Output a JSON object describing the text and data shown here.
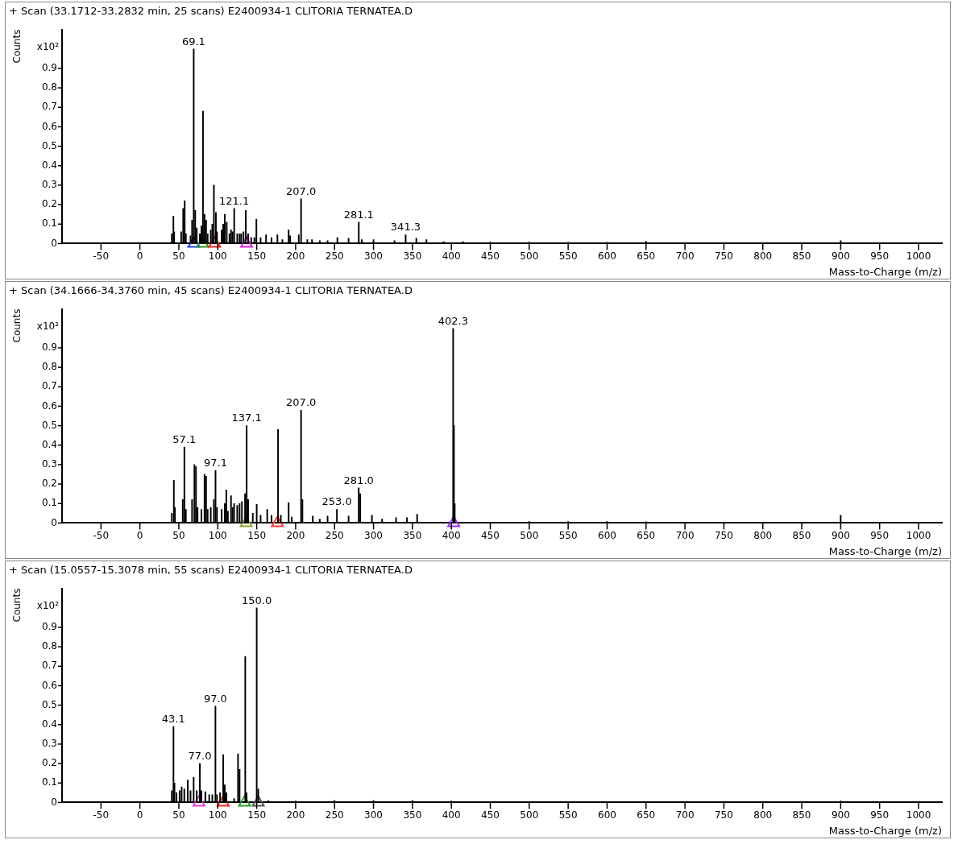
{
  "chart_data": [
    {
      "type": "bar",
      "title": "+ Scan (33.1712-33.2832 min, 25 scans) E2400934-1 CLITORIA TERNATEA.D",
      "xlabel": "Mass-to-Charge (m/z)",
      "ylabel": "Counts",
      "xlim": [
        -100,
        1030
      ],
      "xticks": [
        -50,
        0,
        50,
        100,
        150,
        200,
        250,
        300,
        350,
        400,
        450,
        500,
        550,
        600,
        650,
        700,
        750,
        800,
        850,
        900,
        950,
        1000
      ],
      "ylim": [
        0,
        1.1
      ],
      "yticks": [
        0,
        0.1,
        0.2,
        0.3,
        0.4,
        0.5,
        0.6,
        0.7,
        0.8,
        0.9
      ],
      "annotations": [
        "x10²",
        {
          "text": "69.1",
          "x": 69.1,
          "y": 1.0
        },
        {
          "text": "121.1",
          "x": 121.1,
          "y": 0.18
        },
        {
          "text": "207.0",
          "x": 207,
          "y": 0.23
        },
        {
          "text": "281.1",
          "x": 281.1,
          "y": 0.11
        },
        {
          "text": "341.3",
          "x": 341.3,
          "y": 0.045
        }
      ],
      "series": [
        {
          "color": "#000000",
          "x": [
            41,
            43,
            44,
            53,
            55.6,
            57.5,
            59,
            65,
            67,
            69.1,
            71,
            73,
            77,
            79,
            81,
            83,
            85,
            87,
            91,
            93,
            95,
            97.6,
            99,
            105,
            107,
            109,
            111.5,
            115,
            117,
            119,
            121.1,
            125,
            128,
            130,
            133,
            136,
            139,
            143,
            147,
            149.6,
            155,
            162,
            169,
            176.6,
            183,
            191,
            193,
            204,
            207,
            215,
            221,
            231,
            241,
            253.6,
            268,
            281.1,
            285,
            300,
            327,
            341.3,
            355,
            368,
            390,
            415,
            450,
            500,
            550,
            600,
            650,
            900
          ],
          "values": [
            0.05,
            0.14,
            0.06,
            0.06,
            0.18,
            0.22,
            0.05,
            0.04,
            0.12,
            1.0,
            0.17,
            0.08,
            0.05,
            0.09,
            0.68,
            0.15,
            0.12,
            0.05,
            0.07,
            0.1,
            0.3,
            0.16,
            0.06,
            0.07,
            0.1,
            0.15,
            0.11,
            0.05,
            0.07,
            0.06,
            0.18,
            0.05,
            0.05,
            0.05,
            0.06,
            0.17,
            0.05,
            0.03,
            0.03,
            0.125,
            0.03,
            0.045,
            0.03,
            0.045,
            0.02,
            0.07,
            0.04,
            0.045,
            0.23,
            0.02,
            0.02,
            0.015,
            0.015,
            0.03,
            0.027,
            0.11,
            0.02,
            0.02,
            0.015,
            0.045,
            0.027,
            0.02,
            0.01,
            0.01,
            0.008,
            0.008,
            0.006,
            0.006,
            0.012,
            0.015
          ]
        },
        {
          "type": "scatter",
          "marker": "triangle",
          "x": [
            69.4,
            80.6,
            96,
            137
          ],
          "values": [
            0,
            0,
            0,
            0
          ],
          "colors": [
            "#1f3fff",
            "#2a9a2a",
            "#ff2a1a",
            "#e020e0"
          ]
        }
      ]
    },
    {
      "type": "bar",
      "title": "+ Scan (34.1666-34.3760 min, 45 scans) E2400934-1 CLITORIA TERNATEA.D",
      "xlabel": "Mass-to-Charge (m/z)",
      "ylabel": "Counts",
      "xlim": [
        -100,
        1030
      ],
      "xticks": [
        -50,
        0,
        50,
        100,
        150,
        200,
        250,
        300,
        350,
        400,
        450,
        500,
        550,
        600,
        650,
        700,
        750,
        800,
        850,
        900,
        950,
        1000
      ],
      "ylim": [
        0,
        1.1
      ],
      "yticks": [
        0,
        0.1,
        0.2,
        0.3,
        0.4,
        0.5,
        0.6,
        0.7,
        0.8,
        0.9
      ],
      "annotations": [
        "x10²",
        {
          "text": "57.1",
          "x": 57.1,
          "y": 0.39
        },
        {
          "text": "97.1",
          "x": 97.1,
          "y": 0.27
        },
        {
          "text": "137.1",
          "x": 137.1,
          "y": 0.5
        },
        {
          "text": "207.0",
          "x": 207,
          "y": 0.58
        },
        {
          "text": "253.0",
          "x": 253,
          "y": 0.07
        },
        {
          "text": "281.0",
          "x": 281,
          "y": 0.18
        },
        {
          "text": "402.3",
          "x": 402.3,
          "y": 1.0
        }
      ],
      "series": [
        {
          "color": "#000000",
          "x": [
            41,
            43.6,
            45,
            55,
            57.1,
            59,
            67,
            70,
            72,
            74,
            79,
            83,
            85,
            87,
            91,
            95,
            97.1,
            99,
            105,
            109,
            111,
            113,
            117,
            119,
            121,
            125,
            128,
            131,
            135,
            137.1,
            139,
            145,
            150,
            155,
            163.5,
            169,
            177.4,
            181,
            191,
            195,
            207,
            208.7,
            222,
            231,
            241,
            253,
            268,
            281,
            283,
            298,
            311,
            329,
            343,
            356,
            402.3,
            403.3,
            404.3,
            500,
            550,
            600,
            650,
            900
          ],
          "values": [
            0.05,
            0.22,
            0.08,
            0.12,
            0.39,
            0.07,
            0.12,
            0.3,
            0.29,
            0.08,
            0.07,
            0.25,
            0.24,
            0.07,
            0.08,
            0.12,
            0.27,
            0.08,
            0.07,
            0.1,
            0.17,
            0.06,
            0.14,
            0.08,
            0.1,
            0.09,
            0.1,
            0.11,
            0.15,
            0.5,
            0.12,
            0.05,
            0.095,
            0.04,
            0.07,
            0.04,
            0.48,
            0.04,
            0.105,
            0.03,
            0.58,
            0.12,
            0.035,
            0.02,
            0.035,
            0.07,
            0.035,
            0.18,
            0.15,
            0.04,
            0.02,
            0.027,
            0.027,
            0.045,
            1.0,
            0.5,
            0.1,
            0.008,
            0.008,
            0.008,
            0.006,
            0.04
          ]
        },
        {
          "type": "scatter",
          "marker": "triangle",
          "x": [
            136.5,
            176.6,
            403
          ],
          "values": [
            0,
            0,
            0
          ],
          "colors": [
            "#9aa33a",
            "#ff3a3a",
            "#9b30ff"
          ]
        }
      ]
    },
    {
      "type": "bar",
      "title": "+ Scan (15.0557-15.3078 min, 55 scans) E2400934-1 CLITORIA TERNATEA.D",
      "xlabel": "Mass-to-Charge (m/z)",
      "ylabel": "Counts",
      "xlim": [
        -100,
        1030
      ],
      "xticks": [
        -50,
        0,
        50,
        100,
        150,
        200,
        250,
        300,
        350,
        400,
        450,
        500,
        550,
        600,
        650,
        700,
        750,
        800,
        850,
        900,
        950,
        1000
      ],
      "ylim": [
        0,
        1.1
      ],
      "yticks": [
        0,
        0.1,
        0.2,
        0.3,
        0.4,
        0.5,
        0.6,
        0.7,
        0.8,
        0.9
      ],
      "annotations": [
        "x10²",
        {
          "text": "43.1",
          "x": 43.1,
          "y": 0.39
        },
        {
          "text": "77.0",
          "x": 77,
          "y": 0.2
        },
        {
          "text": "97.0",
          "x": 97,
          "y": 0.495
        },
        {
          "text": "150.0",
          "x": 150,
          "y": 1.0
        }
      ],
      "series": [
        {
          "color": "#000000",
          "x": [
            41,
            43.1,
            44.4,
            47,
            51,
            53.6,
            57,
            61.5,
            65,
            69,
            73,
            77,
            79,
            84,
            89,
            93,
            97,
            99,
            103,
            107,
            109,
            111,
            121,
            126,
            128,
            135.3,
            137,
            150,
            152,
            165,
            200,
            250,
            300,
            350,
            400,
            900
          ],
          "values": [
            0.06,
            0.39,
            0.1,
            0.05,
            0.06,
            0.08,
            0.07,
            0.115,
            0.06,
            0.13,
            0.06,
            0.2,
            0.06,
            0.055,
            0.04,
            0.04,
            0.495,
            0.04,
            0.05,
            0.245,
            0.09,
            0.05,
            0.02,
            0.25,
            0.17,
            0.75,
            0.05,
            1.0,
            0.07,
            0.01,
            0.008,
            0.01,
            0.01,
            0.01,
            0.008,
            0.008
          ]
        },
        {
          "type": "scatter",
          "marker": "triangle",
          "x": [
            75.8,
            107,
            134.5,
            152
          ],
          "values": [
            0,
            0,
            0,
            0
          ],
          "colors": [
            "#e040e0",
            "#ff2a1a",
            "#2a9a2a",
            "#555555"
          ]
        }
      ]
    }
  ]
}
